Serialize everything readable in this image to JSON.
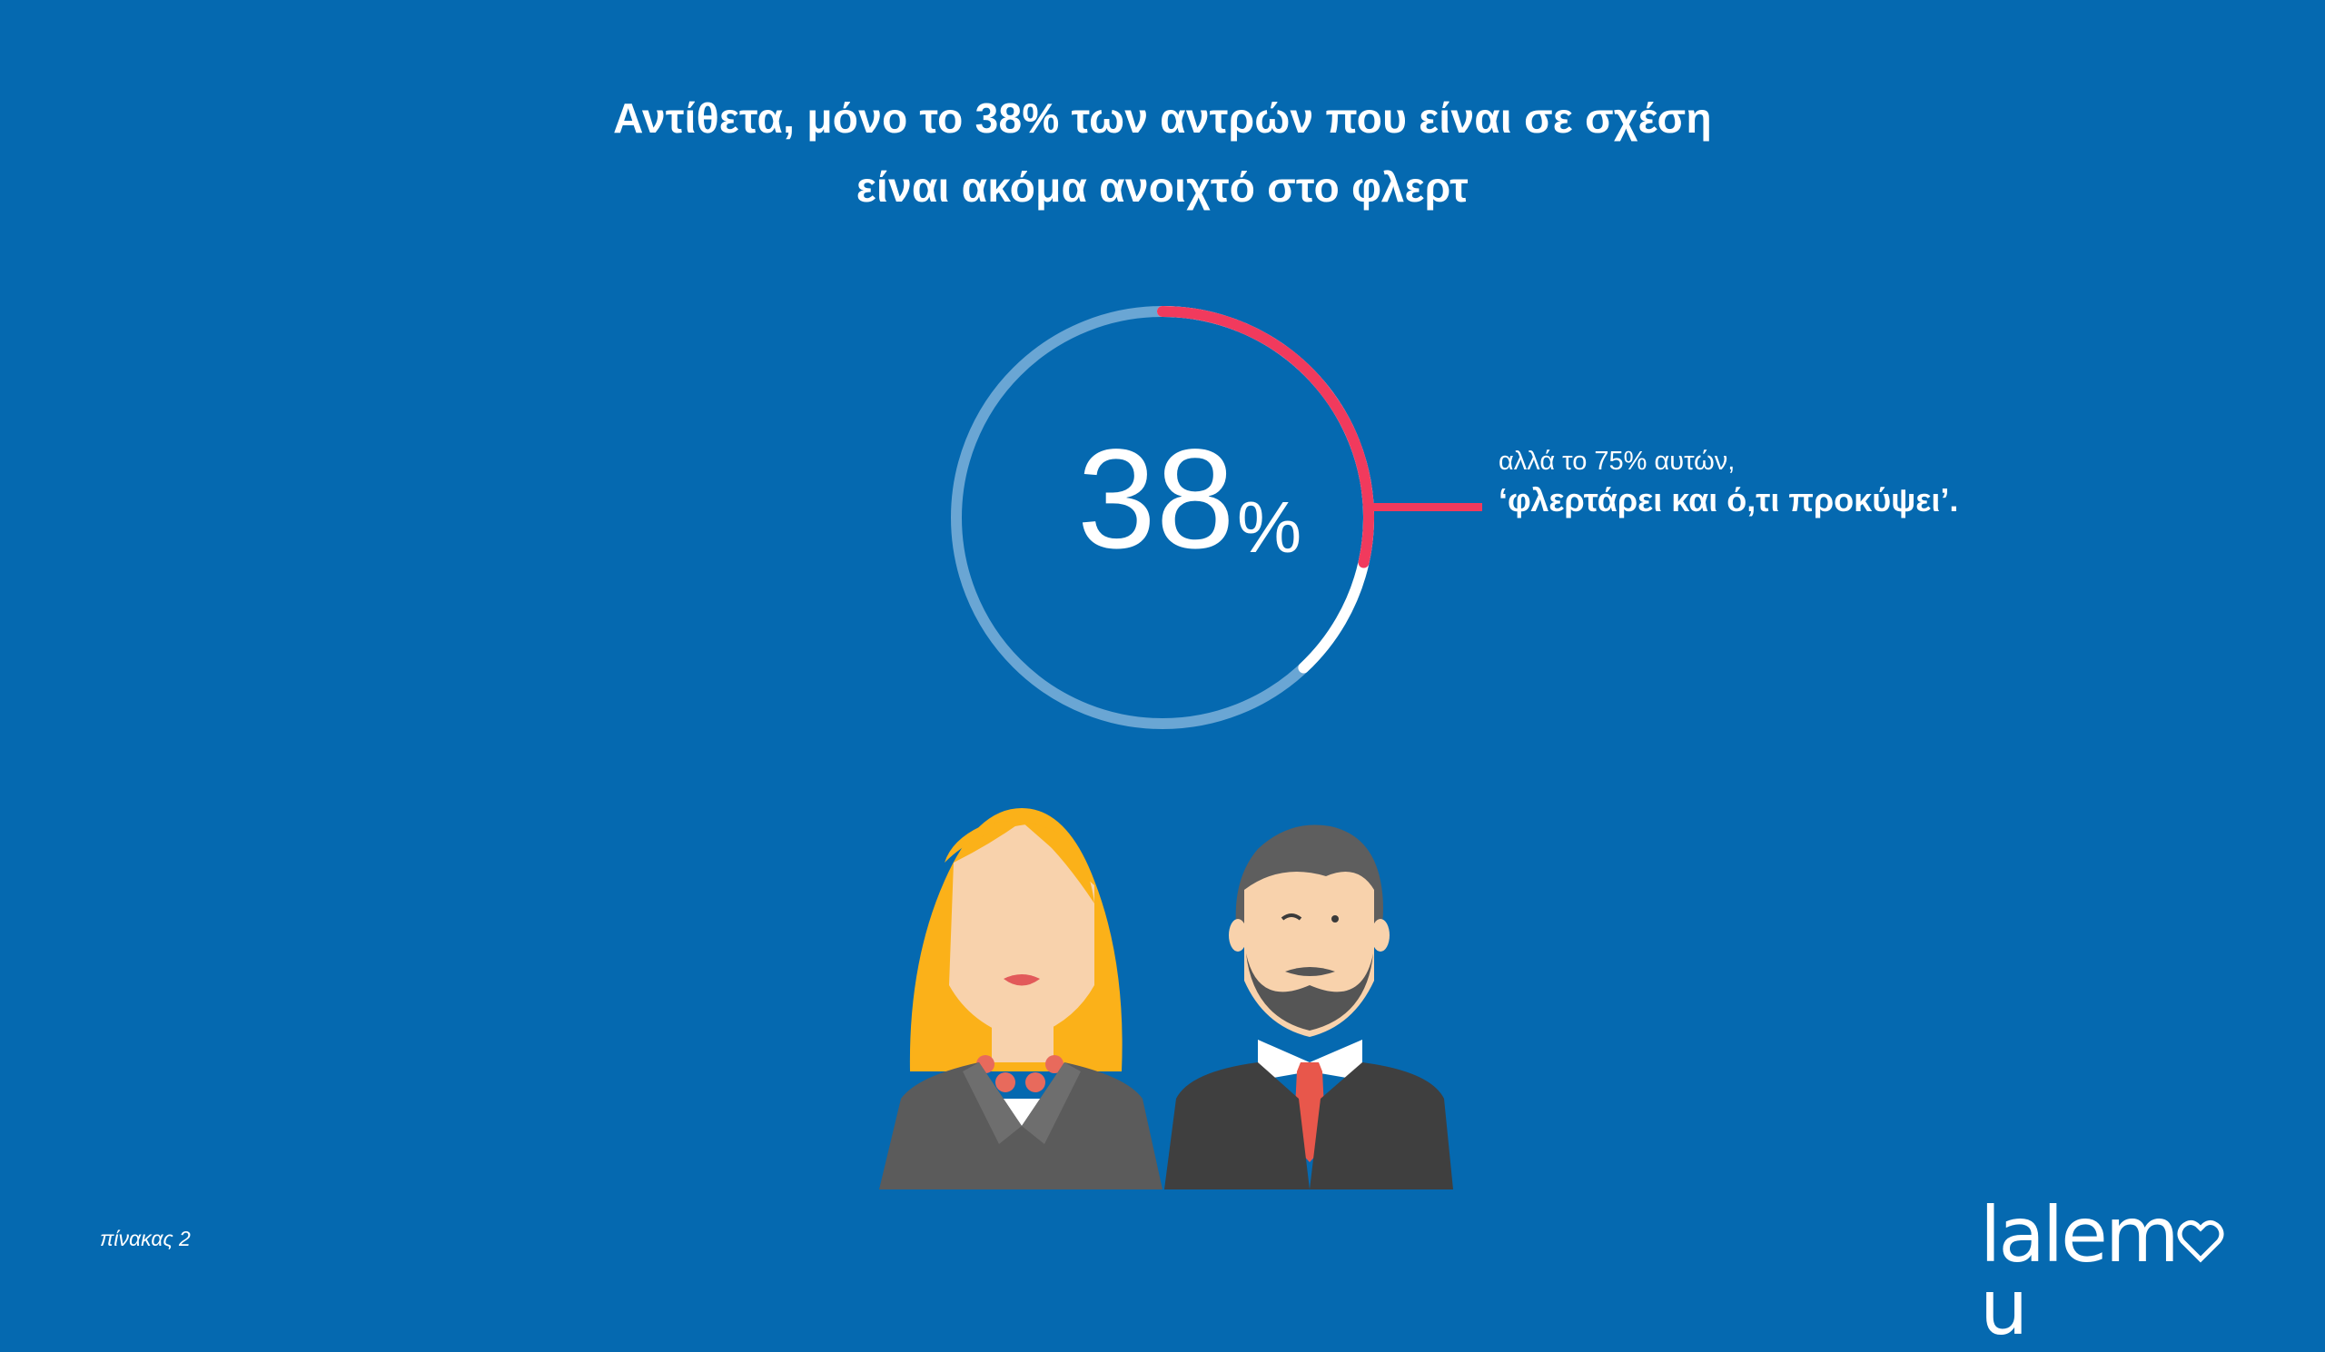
{
  "title": {
    "line1": "Αντίθετα, μόνο το 38% των αντρών που είναι σε σχέση",
    "line2": "είναι ακόμα ανοιχτό στο φλερτ"
  },
  "chart_data": {
    "type": "pie",
    "variant": "donut",
    "values": [
      38,
      75
    ],
    "value_label": "38",
    "value_unit": "%",
    "sub_share_of_value": 75,
    "annotation_sub": "αλλά το 75% αυτών,",
    "annotation_main": "‘φλερτάρει και ό,τι προκύψει’."
  },
  "colors": {
    "background": "#0569b0",
    "highlight": "#f13a5d",
    "track": "#6aa6d4",
    "remainder": "#ffffff"
  },
  "footer": {
    "note": "πίνακας 2"
  },
  "logo": {
    "text": "lalemou"
  }
}
